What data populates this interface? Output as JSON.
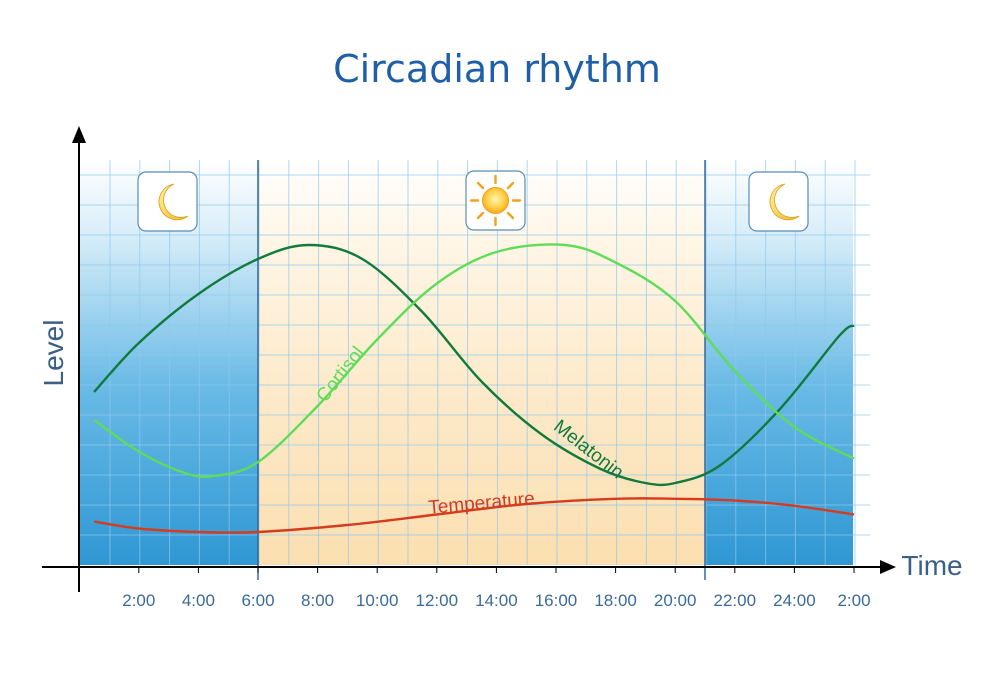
{
  "chart_data": {
    "type": "line",
    "title": "Circadian rhythm",
    "xlabel": "Time",
    "ylabel": "Level",
    "x_ticks": [
      "2:00",
      "4:00",
      "6:00",
      "8:00",
      "10:00",
      "12:00",
      "14:00",
      "16:00",
      "18:00",
      "20:00",
      "22:00",
      "24:00",
      "2:00"
    ],
    "x_range_hours": [
      0.5,
      26
    ],
    "y_range": [
      0,
      100
    ],
    "grid": true,
    "background_bands": [
      {
        "from": 0,
        "to": 6,
        "phase": "night",
        "icon": "moon-icon",
        "color": "#3aa0d8"
      },
      {
        "from": 6,
        "to": 21,
        "phase": "day",
        "icon": "sun-icon",
        "color": "#fbe3b6"
      },
      {
        "from": 21,
        "to": 26,
        "phase": "night",
        "icon": "moon-icon",
        "color": "#3aa0d8"
      }
    ],
    "series": [
      {
        "name": "Melatonin",
        "color": "#117a3d",
        "label_position": "right-of-peak",
        "points": [
          [
            0.5,
            50
          ],
          [
            2,
            64
          ],
          [
            4,
            78
          ],
          [
            6,
            88
          ],
          [
            7.7,
            92
          ],
          [
            9.5,
            88
          ],
          [
            11.5,
            73
          ],
          [
            13.5,
            53
          ],
          [
            15.5,
            38
          ],
          [
            17.5,
            28
          ],
          [
            19,
            24
          ],
          [
            20,
            24
          ],
          [
            21.5,
            29
          ],
          [
            23.5,
            45
          ],
          [
            25.5,
            66
          ],
          [
            26,
            69
          ]
        ]
      },
      {
        "name": "Cortisol",
        "color": "#5fdc5a",
        "label_position": "rising-slope",
        "points": [
          [
            0.5,
            42
          ],
          [
            2,
            33
          ],
          [
            3.5,
            27
          ],
          [
            4.5,
            26
          ],
          [
            6,
            30
          ],
          [
            8,
            46
          ],
          [
            10,
            65
          ],
          [
            12,
            81
          ],
          [
            14,
            90
          ],
          [
            16.3,
            92
          ],
          [
            18,
            87
          ],
          [
            20,
            76
          ],
          [
            22,
            56
          ],
          [
            24,
            40
          ],
          [
            26,
            31
          ]
        ]
      },
      {
        "name": "Temperature",
        "color": "#d63b1e",
        "label_position": "center",
        "points": [
          [
            0.5,
            13
          ],
          [
            2,
            11
          ],
          [
            4,
            10
          ],
          [
            6,
            10
          ],
          [
            9,
            12
          ],
          [
            12,
            15
          ],
          [
            15,
            18
          ],
          [
            18,
            19.5
          ],
          [
            20,
            19.5
          ],
          [
            22,
            19
          ],
          [
            24,
            17.5
          ],
          [
            26,
            15
          ]
        ]
      }
    ]
  }
}
